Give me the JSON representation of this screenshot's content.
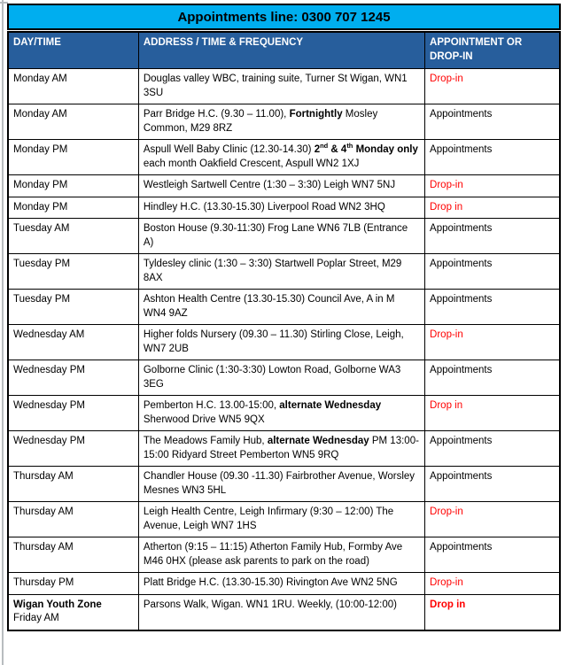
{
  "banner": {
    "title": "Appointments line: 0300 707 1245"
  },
  "colors": {
    "banner_bg": "#00AEEF",
    "header_bg": "#275E9C",
    "header_text": "#FFFFFF",
    "drop_in_red": "#FF0000",
    "body_text": "#000000",
    "border": "#000000",
    "margin_line_gray": "#B8BCBF"
  },
  "table": {
    "headers": [
      "DAY/TIME",
      "ADDRESS / TIME & FREQUENCY",
      "APPOINTMENT OR DROP-IN"
    ],
    "rows": [
      {
        "day": [
          {
            "t": "Monday AM"
          }
        ],
        "address": [
          {
            "t": "Douglas valley WBC, training suite, Turner St Wigan, WN1 3SU"
          }
        ],
        "status": {
          "text": "Drop-in",
          "drop": true,
          "b": false
        }
      },
      {
        "day": [
          {
            "t": "Monday AM"
          }
        ],
        "address": [
          {
            "t": "Parr Bridge H.C. (9.30 – 11.00), "
          },
          {
            "t": "Fortnightly",
            "b": true
          },
          {
            "t": " Mosley Common, M29 8RZ"
          }
        ],
        "status": {
          "text": "Appointments",
          "drop": false,
          "b": false
        }
      },
      {
        "day": [
          {
            "t": "Monday PM"
          }
        ],
        "address": [
          {
            "t": "Aspull Well Baby Clinic (12.30-14.30) "
          },
          {
            "t": "2",
            "b": true
          },
          {
            "t": "nd",
            "b": true,
            "sup": true
          },
          {
            "t": " & 4",
            "b": true
          },
          {
            "t": "th",
            "b": true,
            "sup": true
          },
          {
            "t": " Monday only",
            "b": true
          },
          {
            "t": " each month Oakfield Crescent, Aspull WN2 1XJ"
          }
        ],
        "status": {
          "text": "Appointments",
          "drop": false,
          "b": false
        }
      },
      {
        "day": [
          {
            "t": "Monday PM"
          }
        ],
        "address": [
          {
            "t": "Westleigh Sartwell Centre (1:30 – 3:30) Leigh WN7 5NJ"
          }
        ],
        "status": {
          "text": "Drop-in",
          "drop": true,
          "b": false
        }
      },
      {
        "day": [
          {
            "t": "Monday PM"
          }
        ],
        "address": [
          {
            "t": "Hindley H.C. (13.30-15.30) Liverpool Road WN2 3HQ"
          }
        ],
        "status": {
          "text": "Drop in",
          "drop": true,
          "b": false
        }
      },
      {
        "day": [
          {
            "t": "Tuesday AM"
          }
        ],
        "address": [
          {
            "t": "Boston House (9.30-11:30) Frog Lane WN6 7LB (Entrance A)"
          }
        ],
        "status": {
          "text": "Appointments",
          "drop": false,
          "b": false
        }
      },
      {
        "day": [
          {
            "t": "Tuesday PM"
          }
        ],
        "address": [
          {
            "t": "Tyldesley clinic (1:30 – 3:30) Startwell Poplar Street, M29 8AX"
          }
        ],
        "status": {
          "text": "Appointments",
          "drop": false,
          "b": false
        }
      },
      {
        "day": [
          {
            "t": "Tuesday PM"
          }
        ],
        "address": [
          {
            "t": "Ashton Health Centre (13.30-15.30) Council Ave, A in M WN4 9AZ"
          }
        ],
        "status": {
          "text": "Appointments",
          "drop": false,
          "b": false
        }
      },
      {
        "day": [
          {
            "t": "Wednesday AM"
          }
        ],
        "address": [
          {
            "t": "Higher folds Nursery (09.30 – 11.30) Stirling Close, Leigh, WN7 2UB"
          }
        ],
        "status": {
          "text": "Drop-in",
          "drop": true,
          "b": false
        }
      },
      {
        "day": [
          {
            "t": "Wednesday PM"
          }
        ],
        "address": [
          {
            "t": "Golborne Clinic (1:30-3:30) Lowton Road, Golborne WA3 3EG"
          }
        ],
        "status": {
          "text": "Appointments",
          "drop": false,
          "b": false
        }
      },
      {
        "day": [
          {
            "t": "Wednesday PM"
          }
        ],
        "address": [
          {
            "t": "Pemberton H.C. 13.00-15:00, "
          },
          {
            "t": "alternate Wednesday",
            "b": true
          },
          {
            "t": " Sherwood Drive WN5 9QX"
          }
        ],
        "status": {
          "text": "Drop in",
          "drop": true,
          "b": false
        }
      },
      {
        "day": [
          {
            "t": "Wednesday PM"
          }
        ],
        "address": [
          {
            "t": "The Meadows Family Hub, "
          },
          {
            "t": "alternate Wednesday",
            "b": true
          },
          {
            "t": " PM 13:00-15:00 Ridyard Street Pemberton WN5 9RQ"
          }
        ],
        "status": {
          "text": "Appointments",
          "drop": false,
          "b": false
        }
      },
      {
        "day": [
          {
            "t": "Thursday AM"
          }
        ],
        "address": [
          {
            "t": "Chandler House (09.30 -11.30) Fairbrother Avenue, Worsley Mesnes WN3 5HL"
          }
        ],
        "status": {
          "text": "Appointments",
          "drop": false,
          "b": false
        }
      },
      {
        "day": [
          {
            "t": "Thursday AM"
          }
        ],
        "address": [
          {
            "t": "Leigh Health Centre, Leigh Infirmary (9:30 – 12:00) The Avenue, Leigh WN7 1HS"
          }
        ],
        "status": {
          "text": "Drop-in",
          "drop": true,
          "b": false
        }
      },
      {
        "day": [
          {
            "t": "Thursday AM"
          }
        ],
        "address": [
          {
            "t": "Atherton (9:15 – 11:15) Atherton Family Hub, Formby Ave M46 0HX (please ask parents to park on the road)"
          }
        ],
        "status": {
          "text": "Appointments",
          "drop": false,
          "b": false
        }
      },
      {
        "day": [
          {
            "t": "Thursday PM"
          }
        ],
        "address": [
          {
            "t": "Platt Bridge H.C. (13.30-15.30) Rivington Ave WN2 5NG"
          }
        ],
        "status": {
          "text": "Drop-in",
          "drop": true,
          "b": false
        }
      },
      {
        "day": [
          {
            "t": "Wigan Youth Zone",
            "b": true
          },
          {
            "t": "Friday AM"
          }
        ],
        "address": [
          {
            "t": "Parsons Walk, Wigan. WN1 1RU. Weekly, (10:00-12:00)"
          }
        ],
        "status": {
          "text": "Drop in",
          "drop": true,
          "b": true
        }
      }
    ]
  }
}
